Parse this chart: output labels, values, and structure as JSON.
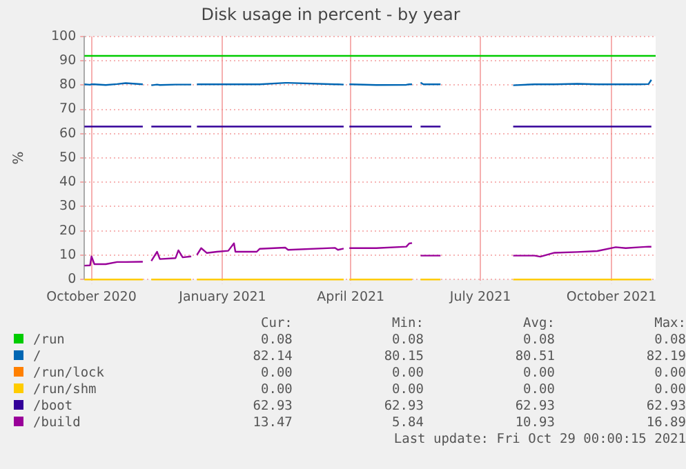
{
  "chart_data": {
    "type": "line",
    "title": "Disk usage in percent - by year",
    "ylabel": "%",
    "x": [
      "2020-09-26",
      "2020-09-30",
      "2020-10-01",
      "2020-10-03",
      "2020-10-11",
      "2020-10-19",
      "2020-10-25",
      "2020-11-06",
      "2020-11-09",
      "2020-11-12",
      "2020-11-16",
      "2020-11-18",
      "2020-11-29",
      "2020-12-01",
      "2020-12-04",
      "2020-12-10",
      "2020-12-12",
      "2020-12-14",
      "2020-12-17",
      "2020-12-21",
      "2020-12-28",
      "2021-01-05",
      "2021-01-09",
      "2021-01-10",
      "2021-01-25",
      "2021-01-27",
      "2021-02-14",
      "2021-02-16",
      "2021-03-21",
      "2021-03-23",
      "2021-03-27",
      "2021-03-29",
      "2021-03-31",
      "2021-04-19",
      "2021-05-10",
      "2021-05-12",
      "2021-05-14",
      "2021-05-17",
      "2021-05-20",
      "2021-05-22",
      "2021-06-03",
      "2021-07-01",
      "2021-07-24",
      "2021-08-08",
      "2021-08-12",
      "2021-08-22",
      "2021-09-07",
      "2021-09-21",
      "2021-10-04",
      "2021-10-11",
      "2021-10-21",
      "2021-10-27",
      "2021-10-29"
    ],
    "series": [
      {
        "name": "/run",
        "color": "#00cc00",
        "values": [
          null,
          null,
          null,
          null,
          null,
          null,
          null,
          null,
          null,
          null,
          null,
          null,
          null,
          null,
          null,
          null,
          null,
          null,
          null,
          null,
          null,
          null,
          null,
          null,
          null,
          null,
          null,
          null,
          null,
          null,
          null,
          null,
          null,
          null,
          null,
          null,
          null,
          null,
          null,
          null,
          null,
          null,
          null,
          null,
          null,
          null,
          null,
          null,
          null,
          null,
          null,
          null,
          null
        ]
      },
      {
        "name": "/",
        "color": "#0066b3",
        "values": [
          80.3,
          80.1,
          80.3,
          80.3,
          80.0,
          80.4,
          80.8,
          80.3,
          null,
          79.9,
          80.2,
          80.0,
          80.2,
          80.2,
          80.2,
          80.2,
          null,
          80.3,
          80.3,
          80.3,
          80.3,
          80.3,
          80.3,
          80.3,
          80.3,
          80.3,
          80.9,
          80.9,
          80.3,
          80.3,
          80.2,
          null,
          80.3,
          80.0,
          80.1,
          80.3,
          80.3,
          null,
          81.0,
          80.3,
          80.3,
          null,
          79.9,
          80.3,
          80.3,
          80.3,
          80.5,
          80.3,
          80.3,
          80.3,
          80.3,
          80.4,
          82.14
        ]
      },
      {
        "name": "/run/lock",
        "color": "#ff8000",
        "values": [
          null,
          null,
          null,
          null,
          null,
          null,
          null,
          null,
          null,
          null,
          null,
          null,
          null,
          null,
          null,
          null,
          null,
          null,
          null,
          null,
          null,
          null,
          null,
          null,
          null,
          null,
          null,
          null,
          null,
          null,
          null,
          null,
          null,
          null,
          null,
          null,
          null,
          null,
          null,
          null,
          null,
          null,
          null,
          null,
          null,
          null,
          null,
          null,
          null,
          null,
          null,
          null,
          null
        ]
      },
      {
        "name": "/run/shm",
        "color": "#ffcc00",
        "values": [
          0,
          0,
          0,
          0,
          0,
          0,
          0,
          0,
          null,
          0,
          0,
          0,
          0,
          0,
          0,
          0,
          null,
          0,
          0,
          0,
          0,
          0,
          0,
          0,
          0,
          0,
          0,
          0,
          0,
          0,
          0,
          null,
          0,
          0,
          0,
          0,
          0,
          null,
          0,
          0,
          0,
          null,
          0,
          0,
          0,
          0,
          0,
          0,
          0,
          0,
          0,
          0,
          0
        ]
      },
      {
        "name": "/boot",
        "color": "#330099",
        "values": [
          62.93,
          62.93,
          62.93,
          62.93,
          62.93,
          62.93,
          62.93,
          62.93,
          null,
          62.93,
          62.93,
          62.93,
          62.93,
          62.93,
          62.93,
          62.93,
          null,
          62.93,
          62.93,
          62.93,
          62.93,
          62.93,
          62.93,
          62.93,
          62.93,
          62.93,
          62.93,
          62.93,
          62.93,
          62.93,
          62.93,
          null,
          62.93,
          62.93,
          62.93,
          62.93,
          62.93,
          null,
          62.93,
          62.93,
          62.93,
          null,
          62.93,
          62.93,
          62.93,
          62.93,
          62.93,
          62.93,
          62.93,
          62.93,
          62.93,
          62.93,
          62.93
        ]
      },
      {
        "name": "/build",
        "color": "#990099",
        "values": [
          5.7,
          5.8,
          9.5,
          6.3,
          6.3,
          7.2,
          7.2,
          7.3,
          null,
          7.6,
          11.4,
          8.4,
          8.8,
          12,
          9.1,
          9.5,
          null,
          10.1,
          12.9,
          10.9,
          11.4,
          11.8,
          14.9,
          11.4,
          11.4,
          12.6,
          13.1,
          12.2,
          13.0,
          12.2,
          12.7,
          null,
          12.9,
          12.9,
          13.5,
          14.8,
          15.0,
          null,
          9.8,
          9.8,
          9.8,
          null,
          9.8,
          9.8,
          9.4,
          11.0,
          11.3,
          11.7,
          13.3,
          12.9,
          13.3,
          13.5,
          13.47
        ]
      }
    ],
    "xlim": [
      "2020-09-26",
      "2021-11-01"
    ],
    "xticks": [
      {
        "value": "2020-10-01",
        "label": "October 2020"
      },
      {
        "value": "2021-01-01",
        "label": "January 2021"
      },
      {
        "value": "2021-04-01",
        "label": "April 2021"
      },
      {
        "value": "2021-07-01",
        "label": "July 2021"
      },
      {
        "value": "2021-10-01",
        "label": "October 2021"
      }
    ],
    "ylim": [
      0,
      100
    ],
    "yticks": [
      0,
      10,
      20,
      30,
      40,
      50,
      60,
      70,
      80,
      90,
      100
    ],
    "ref_lines": [
      {
        "axis": "y",
        "value": 92,
        "color": "#00cc00"
      }
    ],
    "grid": true,
    "legend": "bottom",
    "marker": "none",
    "line_style": "solid",
    "annotations": [
      "Cur:",
      "Min:",
      "Avg:",
      "Max:",
      "0.08",
      "0.08",
      "0.08",
      "0.08",
      "82.14",
      "80.15",
      "80.51",
      "82.19",
      "0.00",
      "0.00",
      "0.00",
      "0.00",
      "0.00",
      "0.00",
      "0.00",
      "0.00",
      "62.93",
      "62.93",
      "62.93",
      "62.93",
      "13.47",
      "5.84",
      "10.93",
      "16.89",
      "Last update: Fri Oct 29 00:00:15 2021"
    ]
  }
}
